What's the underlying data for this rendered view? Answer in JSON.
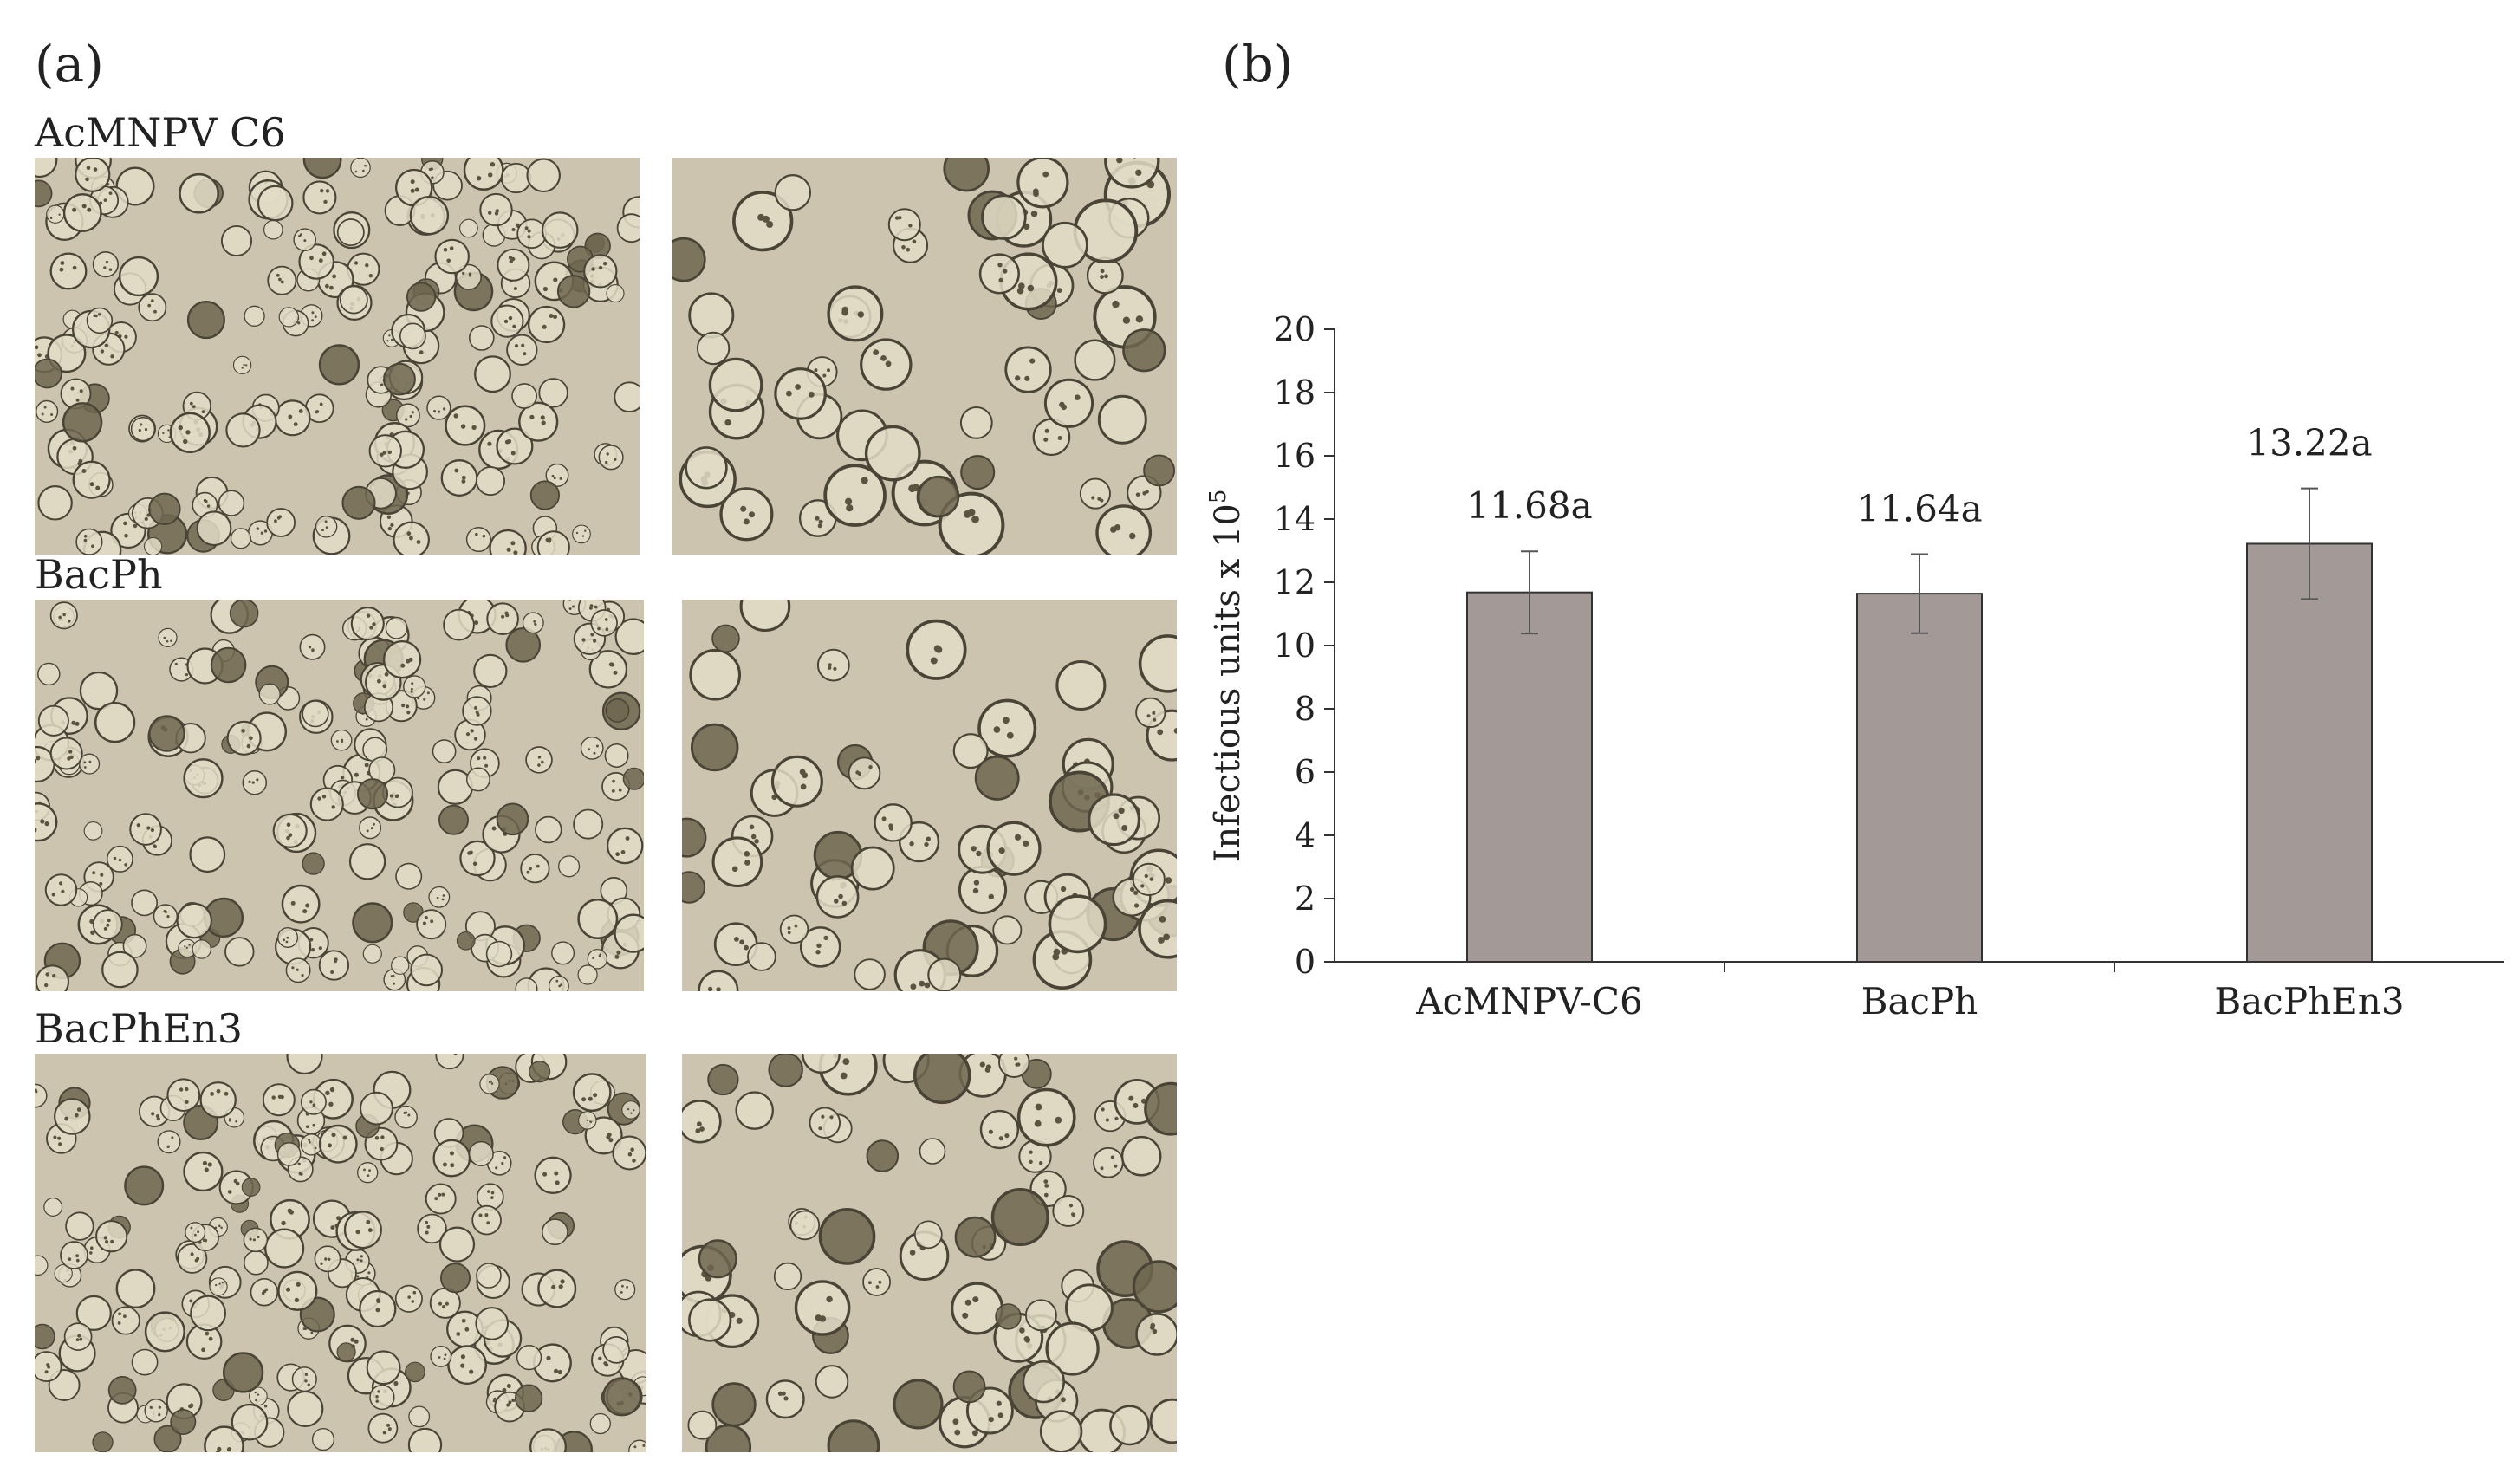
{
  "figure": {
    "panel_a": "(a)",
    "panel_b": "(b)",
    "rows": [
      {
        "label": "AcMNPV C6"
      },
      {
        "label": "BacPh"
      },
      {
        "label": "BacPhEn3"
      }
    ]
  },
  "chart_data": {
    "type": "bar",
    "categories": [
      "AcMNPV-C6",
      "BacPh",
      "BacPhEn3"
    ],
    "values": [
      11.68,
      11.64,
      13.22
    ],
    "errors": [
      1.3,
      1.25,
      1.75
    ],
    "data_labels": [
      "11.68a",
      "11.64a",
      "13.22a"
    ],
    "ylabel": "Infectious units x 10",
    "ylabel_superscript": "5",
    "ylim": [
      0,
      20
    ],
    "yticks": [
      0,
      2,
      4,
      6,
      8,
      10,
      12,
      14,
      16,
      18,
      20
    ],
    "bar_color": "#a39a97",
    "grid": false
  },
  "colors": {
    "micro_background": "#cdc4b0",
    "cell_edge": "#4a4436",
    "cell_fill": "#e2dcc6"
  }
}
